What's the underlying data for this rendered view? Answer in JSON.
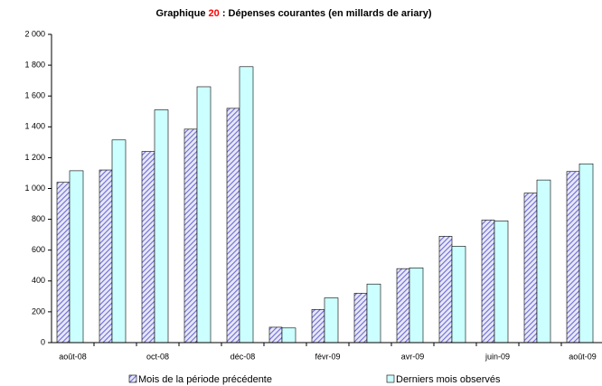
{
  "chart_data": {
    "type": "bar",
    "title": [
      "Graphique ",
      "20",
      " : Dépenses courantes (en millards de ariary)"
    ],
    "title_colors": [
      "#000000",
      "#ff0000",
      "#000000"
    ],
    "categories": [
      "août-08",
      null,
      "oct-08",
      null,
      "déc-08",
      null,
      "févr-09",
      null,
      "avr-09",
      null,
      "juin-09",
      null,
      "août-09"
    ],
    "series": [
      {
        "name": "Mois de la période précédente",
        "color": "#6b6bd6",
        "pattern": "hatch",
        "values": [
          1040,
          1120,
          1240,
          1385,
          1520,
          100,
          215,
          320,
          480,
          690,
          795,
          970,
          1110
        ]
      },
      {
        "name": "Derniers mois observés",
        "color": "#ccffff",
        "pattern": "solid",
        "values": [
          1115,
          1315,
          1510,
          1660,
          1790,
          95,
          290,
          380,
          485,
          625,
          790,
          1055,
          1160
        ]
      }
    ],
    "ylim": [
      0,
      2000
    ],
    "yticks": [
      0,
      200,
      400,
      600,
      800,
      {
        "value": 1000,
        "label": "1 000"
      },
      {
        "value": 1200,
        "label": "1 200"
      },
      {
        "value": 1400,
        "label": "1 400"
      },
      {
        "value": 1600,
        "label": "1 600"
      },
      {
        "value": 1800,
        "label": "1 800"
      },
      {
        "value": 2000,
        "label": "2 000"
      }
    ],
    "grid": false,
    "legend": "bottom"
  }
}
